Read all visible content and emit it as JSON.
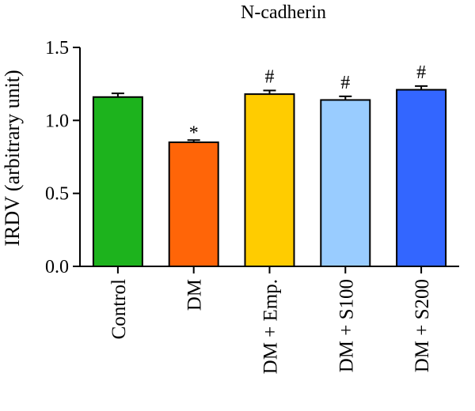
{
  "chart_data": {
    "type": "bar",
    "title": "N-cadherin",
    "xlabel": "",
    "ylabel": "IRDV (arbitrary unit)",
    "ylim": [
      0,
      1.5
    ],
    "yticks": [
      "0.0",
      "0.5",
      "1.0",
      "1.5"
    ],
    "grid": false,
    "categories": [
      "Control",
      "DM",
      "DM + Emp.",
      "DM + S100",
      "DM + S200"
    ],
    "values": [
      1.16,
      0.85,
      1.18,
      1.14,
      1.21
    ],
    "errors": [
      0.025,
      0.015,
      0.025,
      0.025,
      0.025
    ],
    "annotations": [
      "",
      "*",
      "#",
      "#",
      "#"
    ],
    "colors": [
      "#1db31d",
      "#ff6508",
      "#ffcc00",
      "#99ccff",
      "#3366ff"
    ]
  }
}
